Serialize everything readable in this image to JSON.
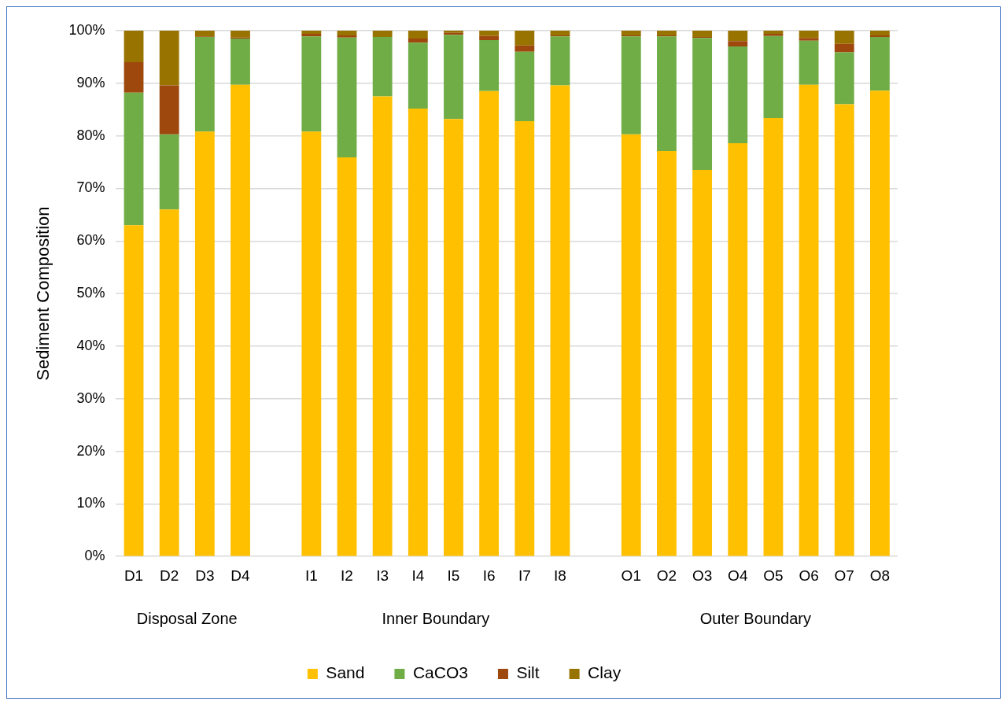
{
  "chart_data": {
    "type": "bar",
    "stacked": true,
    "ylabel": "Sediment Composition",
    "categories": [
      "D1",
      "D2",
      "D3",
      "D4",
      null,
      "I1",
      "I2",
      "I3",
      "I4",
      "I5",
      "I6",
      "I7",
      "I8",
      null,
      "O1",
      "O2",
      "O3",
      "O4",
      "O5",
      "O6",
      "O7",
      "O8"
    ],
    "series": [
      {
        "name": "Sand",
        "color": "#ffc000",
        "values": [
          63,
          66,
          80.8,
          89.7,
          null,
          80.8,
          75.9,
          87.5,
          85.2,
          83.2,
          88.5,
          82.8,
          89.6,
          null,
          80.3,
          77.1,
          73.5,
          78.6,
          83.4,
          89.7,
          86,
          88.6
        ]
      },
      {
        "name": "CaCO3",
        "color": "#70ad47",
        "values": [
          25.2,
          14.3,
          18,
          8.8,
          null,
          18.1,
          22.8,
          11.3,
          12.5,
          16,
          9.7,
          13.2,
          9.3,
          null,
          18.6,
          21.8,
          25.1,
          18.4,
          15.6,
          8.4,
          9.9,
          10.2
        ]
      },
      {
        "name": "Silt",
        "color": "#9e480e",
        "values": [
          5.8,
          9.3,
          0.1,
          0.2,
          null,
          0.5,
          0.4,
          0,
          0.8,
          0.4,
          0.8,
          1.2,
          0.2,
          null,
          0.2,
          0.2,
          0.2,
          1,
          0.4,
          0.5,
          1.6,
          0.3
        ]
      },
      {
        "name": "Clay",
        "color": "#997300",
        "values": [
          6,
          10.4,
          1.1,
          1.3,
          null,
          0.6,
          0.9,
          1.2,
          1.5,
          0.4,
          1,
          2.8,
          0.9,
          null,
          0.9,
          0.9,
          1.2,
          2,
          0.6,
          1.4,
          2.5,
          0.9
        ]
      }
    ],
    "ylim": [
      0,
      100
    ],
    "yticks": [
      {
        "value": 0,
        "label": "0%"
      },
      {
        "value": 10,
        "label": "10%"
      },
      {
        "value": 20,
        "label": "20%"
      },
      {
        "value": 30,
        "label": "30%"
      },
      {
        "value": 40,
        "label": "40%"
      },
      {
        "value": 50,
        "label": "50%"
      },
      {
        "value": 60,
        "label": "60%"
      },
      {
        "value": 70,
        "label": "70%"
      },
      {
        "value": 80,
        "label": "80%"
      },
      {
        "value": 90,
        "label": "90%"
      },
      {
        "value": 100,
        "label": "100%"
      }
    ],
    "grid": "y",
    "legend": "bottom",
    "annotations": [
      "Disposal Zone",
      "Inner Boundary",
      "Outer Boundary"
    ]
  }
}
